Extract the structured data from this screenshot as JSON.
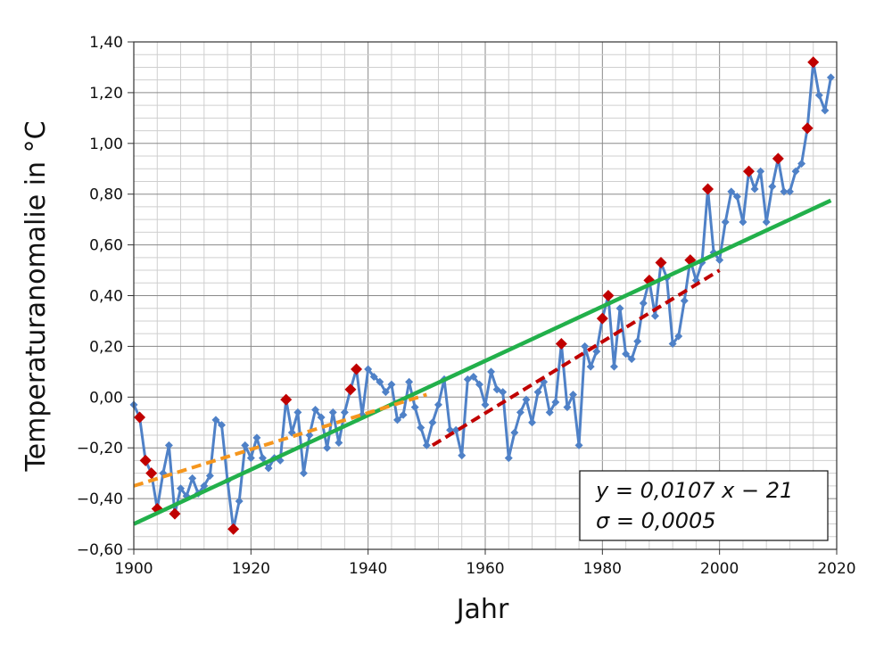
{
  "chart_data": {
    "type": "line",
    "title": "",
    "xlabel": "Jahr",
    "ylabel": "Temperaturanomalie in °C",
    "xlim": [
      1900,
      2020
    ],
    "ylim": [
      -0.6,
      1.4
    ],
    "grid": true,
    "x_ticks": [
      {
        "value": 1900,
        "label": "1900"
      },
      {
        "value": 1920,
        "label": "1920"
      },
      {
        "value": 1940,
        "label": "1940"
      },
      {
        "value": 1960,
        "label": "1960"
      },
      {
        "value": 1980,
        "label": "1980"
      },
      {
        "value": 2000,
        "label": "2000"
      },
      {
        "value": 2020,
        "label": "2020"
      }
    ],
    "y_ticks": [
      {
        "value": 1.4,
        "label": "1,40"
      },
      {
        "value": 1.2,
        "label": "1,20"
      },
      {
        "value": 1.0,
        "label": "1,00"
      },
      {
        "value": 0.8,
        "label": "0,80"
      },
      {
        "value": 0.6,
        "label": "0,60"
      },
      {
        "value": 0.4,
        "label": "0,40"
      },
      {
        "value": 0.2,
        "label": "0,20"
      },
      {
        "value": 0.0,
        "label": "0,00"
      },
      {
        "value": -0.2,
        "label": "−0,20"
      },
      {
        "value": -0.4,
        "label": "−0,40"
      },
      {
        "value": -0.6,
        "label": "−0,60"
      }
    ],
    "series": [
      {
        "name": "Temperaturanomalie",
        "color": "#4f81c7",
        "x_start": 1900,
        "values": [
          -0.03,
          -0.08,
          -0.25,
          -0.3,
          -0.44,
          -0.3,
          -0.19,
          -0.46,
          -0.36,
          -0.39,
          -0.32,
          -0.38,
          -0.35,
          -0.31,
          -0.09,
          -0.11,
          -0.33,
          -0.52,
          -0.41,
          -0.19,
          -0.24,
          -0.16,
          -0.24,
          -0.28,
          -0.24,
          -0.25,
          -0.01,
          -0.14,
          -0.06,
          -0.3,
          -0.15,
          -0.05,
          -0.08,
          -0.2,
          -0.06,
          -0.18,
          -0.06,
          0.03,
          0.11,
          -0.07,
          0.11,
          0.08,
          0.06,
          0.02,
          0.05,
          -0.09,
          -0.07,
          0.06,
          -0.04,
          -0.12,
          -0.19,
          -0.1,
          -0.03,
          0.07,
          -0.13,
          -0.13,
          -0.23,
          0.07,
          0.08,
          0.05,
          -0.03,
          0.1,
          0.03,
          0.02,
          -0.24,
          -0.14,
          -0.06,
          -0.01,
          -0.1,
          0.02,
          0.06,
          -0.06,
          -0.02,
          0.21,
          -0.04,
          0.01,
          -0.19,
          0.2,
          0.12,
          0.18,
          0.31,
          0.4,
          0.12,
          0.35,
          0.17,
          0.15,
          0.22,
          0.37,
          0.46,
          0.32,
          0.53,
          0.47,
          0.21,
          0.24,
          0.38,
          0.54,
          0.46,
          0.53,
          0.82,
          0.57,
          0.54,
          0.69,
          0.81,
          0.79,
          0.69,
          0.89,
          0.82,
          0.89,
          0.69,
          0.83,
          0.94,
          0.81,
          0.81,
          0.89,
          0.92,
          1.06,
          1.32,
          1.19,
          1.13,
          1.26
        ],
        "highlight_color": "#c00000",
        "highlight_years": [
          1901,
          1902,
          1903,
          1904,
          1907,
          1917,
          1926,
          1937,
          1938,
          1973,
          1980,
          1981,
          1988,
          1990,
          1995,
          1998,
          2005,
          2010,
          2015,
          2016
        ]
      }
    ],
    "trend_lines": [
      {
        "name": "trend-1900-2019",
        "color": "#22b04b",
        "style": "solid",
        "from": [
          1900,
          -0.5
        ],
        "to": [
          2019,
          0.775
        ]
      },
      {
        "name": "trend-1900-1950",
        "color": "#f5961d",
        "style": "dashed",
        "from": [
          1900,
          -0.35
        ],
        "to": [
          1950,
          0.01
        ]
      },
      {
        "name": "trend-1951-2000",
        "color": "#c00000",
        "style": "dashed",
        "from": [
          1951,
          -0.19
        ],
        "to": [
          2000,
          0.5
        ]
      }
    ],
    "annotation": {
      "line1": "y = 0,0107 x − 21",
      "line2": "σ = 0,0005"
    }
  }
}
